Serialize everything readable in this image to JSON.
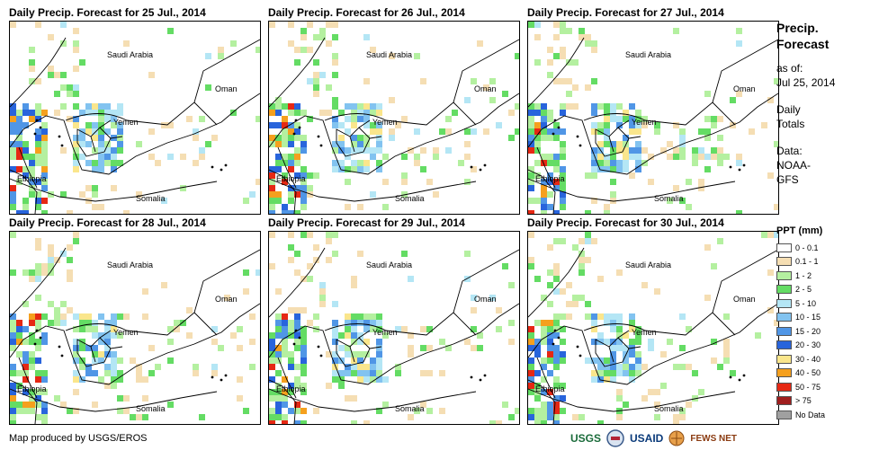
{
  "panels": [
    {
      "title": "Daily Precip. Forecast for 25 Jul., 2014"
    },
    {
      "title": "Daily Precip. Forecast for 26 Jul., 2014"
    },
    {
      "title": "Daily Precip. Forecast for 27 Jul., 2014"
    },
    {
      "title": "Daily Precip. Forecast for 28 Jul., 2014"
    },
    {
      "title": "Daily Precip. Forecast for 29 Jul., 2014"
    },
    {
      "title": "Daily Precip. Forecast for 30 Jul., 2014"
    }
  ],
  "map_labels": {
    "saudi": "Saudi Arabia",
    "oman": "Oman",
    "yemen": "Yemen",
    "ethiopia": "Ethiopia",
    "somalia": "Somalia"
  },
  "legend": {
    "title": [
      "Precip.",
      "Forecast"
    ],
    "as_of_label": "as of:",
    "as_of_date": "Jul 25, 2014",
    "daily_totals": [
      "Daily",
      "Totals"
    ],
    "data_label": "Data:",
    "data_source": [
      "NOAA-",
      "GFS"
    ]
  },
  "ppt": {
    "title": "PPT (mm)",
    "classes": [
      {
        "label": "0 - 0.1",
        "color": "#ffffff"
      },
      {
        "label": "0.1 - 1",
        "color": "#f5deb3"
      },
      {
        "label": "1 - 2",
        "color": "#b4f0a0"
      },
      {
        "label": "2 - 5",
        "color": "#64dc64"
      },
      {
        "label": "5 - 10",
        "color": "#b4e6f5"
      },
      {
        "label": "10 - 15",
        "color": "#82c3f0"
      },
      {
        "label": "15 - 20",
        "color": "#5096e6"
      },
      {
        "label": "20 - 30",
        "color": "#2864dc"
      },
      {
        "label": "30 - 40",
        "color": "#fae68c"
      },
      {
        "label": "40 - 50",
        "color": "#f5a01e"
      },
      {
        "label": "50 - 75",
        "color": "#e62814"
      },
      {
        "label": "> 75",
        "color": "#a01e1e"
      },
      {
        "label": "No Data",
        "color": "#a0a0a0"
      }
    ]
  },
  "credit": "Map produced by USGS/EROS",
  "logos": {
    "usgs": "USGS",
    "usaid": "USAID",
    "fews": "FEWS NET"
  }
}
